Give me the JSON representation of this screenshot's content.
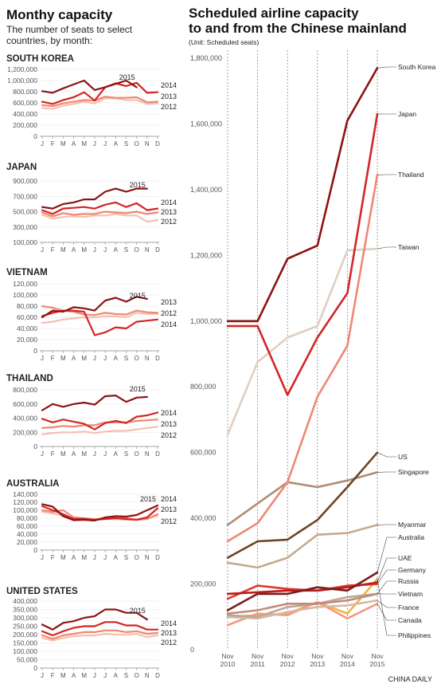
{
  "left_panel": {
    "title": "Monthy capacity",
    "subtitle_line1": "The number of seats to select",
    "subtitle_line2": "countries, by month:"
  },
  "right_panel": {
    "title_line1": "Scheduled airline capacity",
    "title_line2": "to and from the Chinese mainland",
    "unit": "(Unit: Scheduled seats)"
  },
  "credit": "CHINA DAILY",
  "colors": {
    "y2015": "#8c1414",
    "y2014": "#d42525",
    "y2013": "#ee8873",
    "y2012": "#f4c0b0"
  },
  "chart_data": [
    {
      "type": "line",
      "title": "SOUTH KOREA",
      "categories": [
        "J",
        "F",
        "M",
        "A",
        "M",
        "J",
        "J",
        "A",
        "S",
        "O",
        "N",
        "D"
      ],
      "ylim": [
        0,
        1200000
      ],
      "yticks": [
        0,
        200000,
        400000,
        600000,
        800000,
        1000000,
        1200000
      ],
      "ytick_labels": [
        "0",
        "200,000",
        "400,000",
        "600,000",
        "800,000",
        "1,000,000",
        "1,200,000"
      ],
      "series": [
        {
          "name": "2015",
          "values": [
            810000,
            780000,
            860000,
            930000,
            1000000,
            830000,
            880000,
            940000,
            1000000,
            880000,
            null,
            null
          ]
        },
        {
          "name": "2014",
          "values": [
            620000,
            580000,
            650000,
            700000,
            790000,
            640000,
            880000,
            950000,
            900000,
            960000,
            780000,
            790000
          ]
        },
        {
          "name": "2013",
          "values": [
            560000,
            540000,
            590000,
            620000,
            650000,
            640000,
            710000,
            690000,
            690000,
            700000,
            610000,
            620000
          ]
        },
        {
          "name": "2012",
          "values": [
            510000,
            490000,
            550000,
            580000,
            620000,
            590000,
            680000,
            680000,
            650000,
            650000,
            580000,
            590000
          ]
        }
      ]
    },
    {
      "type": "line",
      "title": "JAPAN",
      "categories": [
        "J",
        "F",
        "M",
        "A",
        "M",
        "J",
        "J",
        "A",
        "S",
        "O",
        "N",
        "D"
      ],
      "ylim": [
        100000,
        900000
      ],
      "yticks": [
        100000,
        300000,
        500000,
        700000,
        900000
      ],
      "ytick_labels": [
        "100,000",
        "300,000",
        "500,000",
        "700,000",
        "900,000"
      ],
      "series": [
        {
          "name": "2015",
          "values": [
            560000,
            540000,
            600000,
            620000,
            660000,
            660000,
            760000,
            800000,
            760000,
            800000,
            800000,
            null
          ]
        },
        {
          "name": "2014",
          "values": [
            520000,
            470000,
            540000,
            550000,
            560000,
            540000,
            590000,
            620000,
            560000,
            610000,
            520000,
            540000
          ]
        },
        {
          "name": "2013",
          "values": [
            490000,
            440000,
            480000,
            460000,
            470000,
            470000,
            500000,
            490000,
            480000,
            500000,
            470000,
            490000
          ]
        },
        {
          "name": "2012",
          "values": [
            460000,
            410000,
            430000,
            440000,
            430000,
            450000,
            450000,
            470000,
            450000,
            450000,
            370000,
            390000
          ]
        }
      ]
    },
    {
      "type": "line",
      "title": "VIETNAM",
      "categories": [
        "J",
        "F",
        "M",
        "A",
        "M",
        "J",
        "J",
        "A",
        "S",
        "O",
        "N",
        "D"
      ],
      "ylim": [
        0,
        120000
      ],
      "yticks": [
        0,
        20000,
        40000,
        60000,
        80000,
        100000,
        120000
      ],
      "ytick_labels": [
        "0",
        "20,000",
        "40,000",
        "60,000",
        "80,000",
        "100,000",
        "120,000"
      ],
      "series": [
        {
          "name": "2015",
          "values": [
            60000,
            72000,
            70000,
            78000,
            76000,
            72000,
            90000,
            95000,
            88000,
            97000,
            93000,
            null
          ]
        },
        {
          "name": "2014",
          "values": [
            62000,
            68000,
            72000,
            72000,
            70000,
            28000,
            33000,
            42000,
            40000,
            52000,
            54000,
            56000
          ]
        },
        {
          "name": "2013",
          "values": [
            80000,
            77000,
            72000,
            70000,
            65000,
            64000,
            68000,
            66000,
            65000,
            72000,
            69000,
            68000
          ]
        },
        {
          "name": "2012",
          "values": [
            50000,
            52000,
            56000,
            58000,
            60000,
            60000,
            62000,
            62000,
            60000,
            68000,
            66000,
            66000
          ]
        }
      ]
    },
    {
      "type": "line",
      "title": "THAILAND",
      "categories": [
        "J",
        "F",
        "M",
        "A",
        "M",
        "J",
        "J",
        "A",
        "S",
        "O",
        "N",
        "D"
      ],
      "ylim": [
        0,
        800000
      ],
      "yticks": [
        0,
        200000,
        400000,
        600000,
        800000
      ],
      "ytick_labels": [
        "0",
        "200,000",
        "400,000",
        "600,000",
        "800,000"
      ],
      "series": [
        {
          "name": "2015",
          "values": [
            510000,
            600000,
            560000,
            600000,
            620000,
            590000,
            710000,
            720000,
            630000,
            690000,
            700000,
            null
          ]
        },
        {
          "name": "2014",
          "values": [
            390000,
            340000,
            380000,
            350000,
            320000,
            240000,
            330000,
            360000,
            330000,
            420000,
            440000,
            480000
          ]
        },
        {
          "name": "2013",
          "values": [
            260000,
            270000,
            290000,
            280000,
            300000,
            300000,
            340000,
            340000,
            340000,
            360000,
            370000,
            380000
          ]
        },
        {
          "name": "2012",
          "values": [
            170000,
            190000,
            200000,
            200000,
            210000,
            190000,
            210000,
            220000,
            220000,
            240000,
            260000,
            280000
          ]
        }
      ]
    },
    {
      "type": "line",
      "title": "AUSTRALIA",
      "categories": [
        "J",
        "F",
        "M",
        "A",
        "M",
        "J",
        "J",
        "A",
        "S",
        "O",
        "N",
        "D"
      ],
      "ylim": [
        0,
        140000
      ],
      "yticks": [
        0,
        20000,
        40000,
        60000,
        80000,
        100000,
        120000,
        140000
      ],
      "ytick_labels": [
        "0",
        "20,000",
        "40,000",
        "60,000",
        "80,000",
        "100,000",
        "120,000",
        "140,000"
      ],
      "series": [
        {
          "name": "2015",
          "values": [
            115000,
            109000,
            85000,
            75000,
            76000,
            74000,
            82000,
            85000,
            84000,
            88000,
            100000,
            112000
          ]
        },
        {
          "name": "2014",
          "values": [
            110000,
            100000,
            90000,
            78000,
            78000,
            76000,
            78000,
            80000,
            78000,
            76000,
            82000,
            105000
          ]
        },
        {
          "name": "2013",
          "values": [
            100000,
            96000,
            100000,
            82000,
            80000,
            77000,
            80000,
            80000,
            80000,
            76000,
            78000,
            90000
          ]
        },
        {
          "name": "2012",
          "values": [
            96000,
            92000,
            86000,
            78000,
            78000,
            75000,
            78000,
            78000,
            76000,
            76000,
            80000,
            86000
          ]
        }
      ]
    },
    {
      "type": "line",
      "title": "UNITED STATES",
      "categories": [
        "J",
        "F",
        "M",
        "A",
        "M",
        "J",
        "J",
        "A",
        "S",
        "O",
        "N",
        "D"
      ],
      "ylim": [
        0,
        400000
      ],
      "yticks": [
        0,
        50000,
        100000,
        150000,
        200000,
        250000,
        300000,
        350000,
        400000
      ],
      "ytick_labels": [
        "0",
        "50,000",
        "100,000",
        "150,000",
        "200,000",
        "250,000",
        "300,000",
        "350,000",
        "400,000"
      ],
      "series": [
        {
          "name": "2015",
          "values": [
            260000,
            230000,
            270000,
            280000,
            300000,
            310000,
            350000,
            350000,
            330000,
            330000,
            290000,
            null
          ]
        },
        {
          "name": "2014",
          "values": [
            220000,
            195000,
            220000,
            240000,
            250000,
            250000,
            275000,
            275000,
            255000,
            255000,
            230000,
            230000
          ]
        },
        {
          "name": "2013",
          "values": [
            195000,
            175000,
            195000,
            205000,
            215000,
            215000,
            225000,
            225000,
            215000,
            220000,
            205000,
            210000
          ]
        },
        {
          "name": "2012",
          "values": [
            180000,
            165000,
            180000,
            190000,
            195000,
            195000,
            205000,
            200000,
            200000,
            205000,
            185000,
            195000
          ]
        }
      ]
    },
    {
      "type": "line",
      "title": "Scheduled airline capacity to and from the Chinese mainland",
      "x": [
        "Nov 2010",
        "Nov 2011",
        "Nov 2012",
        "Nov 2013",
        "Nov 2014",
        "Nov 2015"
      ],
      "ylim": [
        0,
        1800000
      ],
      "yticks": [
        0,
        200000,
        400000,
        600000,
        800000,
        1000000,
        1200000,
        1400000,
        1600000,
        1800000
      ],
      "ytick_labels": [
        "0",
        "200,000",
        "400,000",
        "600,000",
        "800,000",
        "1,000,000",
        "1,200,000",
        "1,400,000",
        "1,600,000",
        "1,800,000"
      ],
      "series": [
        {
          "name": "South Korea",
          "color": "#8c1414",
          "values": [
            1000000,
            1000000,
            1190000,
            1230000,
            1610000,
            1770000
          ]
        },
        {
          "name": "Japan",
          "color": "#d42525",
          "values": [
            985000,
            985000,
            775000,
            950000,
            1085000,
            1630000
          ]
        },
        {
          "name": "Thailand",
          "color": "#ee8873",
          "values": [
            330000,
            385000,
            510000,
            770000,
            925000,
            1445000
          ]
        },
        {
          "name": "Taiwan",
          "color": "#dfcfc0",
          "values": [
            655000,
            875000,
            950000,
            985000,
            1215000,
            1220000
          ]
        },
        {
          "name": "US",
          "color": "#6e4325",
          "values": [
            280000,
            330000,
            335000,
            395000,
            495000,
            600000
          ]
        },
        {
          "name": "Singapore",
          "color": "#b08c74",
          "values": [
            380000,
            445000,
            510000,
            495000,
            515000,
            540000
          ]
        },
        {
          "name": "Myanmar",
          "color": "#c5aa8c",
          "values": [
            265000,
            250000,
            280000,
            350000,
            355000,
            380000
          ]
        },
        {
          "name": "Australia",
          "color": "#7a1d1d",
          "values": [
            120000,
            170000,
            170000,
            190000,
            180000,
            235000
          ]
        },
        {
          "name": "UAE",
          "color": "#b91e1e",
          "values": [
            170000,
            175000,
            180000,
            180000,
            190000,
            205000
          ]
        },
        {
          "name": "Germany",
          "color": "#e03a2a",
          "values": [
            155000,
            195000,
            185000,
            180000,
            195000,
            200000
          ]
        },
        {
          "name": "Russia",
          "color": "#c48a7a",
          "values": [
            110000,
            120000,
            140000,
            140000,
            150000,
            170000
          ]
        },
        {
          "name": "Vietnam",
          "color": "#b8a898",
          "values": [
            105000,
            100000,
            130000,
            140000,
            160000,
            170000
          ]
        },
        {
          "name": "France",
          "color": "#d6b8a8",
          "values": [
            100000,
            95000,
            115000,
            130000,
            135000,
            150000
          ]
        },
        {
          "name": "Canada",
          "color": "#f29a80",
          "values": [
            75000,
            110000,
            105000,
            145000,
            95000,
            140000
          ]
        },
        {
          "name": "Philippines",
          "color": "#f2b440",
          "values": [
            100000,
            105000,
            110000,
            145000,
            110000,
            215000
          ]
        }
      ]
    }
  ]
}
